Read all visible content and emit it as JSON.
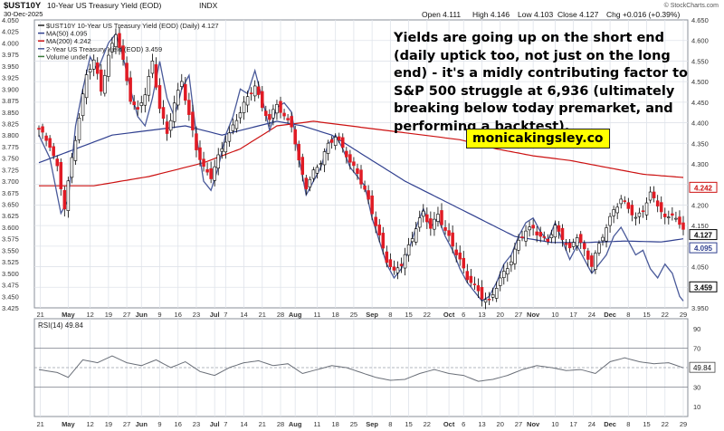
{
  "chart_data": {
    "type": "candlestick",
    "header": {
      "symbol": "$UST10Y",
      "name": "10-Year US Treasury Yield (EOD)",
      "exchange": "INDX",
      "date": "30-Dec-2025",
      "open_label": "Open 4.111",
      "high_label": "High 4.146",
      "low_label": "Low 4.103",
      "close_label": "Close 4.127",
      "chg_label": "Chg +0.016 (+0.39%)",
      "copyright": "© StockCharts.com"
    },
    "legend": [
      {
        "name": "$UST10Y 10-Year US Treasury Yield (EOD) (Daily) 4.127",
        "color": "#222222"
      },
      {
        "name": "MA(50) 4.095",
        "color": "#2f3f8f"
      },
      {
        "name": "MA(200) 4.242",
        "color": "#cc1111"
      },
      {
        "name": "2-Year US Treasury Yield (EOD) 3.459",
        "color": "#4a5a9a"
      },
      {
        "name": "Volume undef",
        "color": "#3a7a3a"
      }
    ],
    "ylim": [
      3.425,
      4.05
    ],
    "y_ticks_left": [
      3.425,
      3.45,
      3.475,
      3.5,
      3.525,
      3.55,
      3.575,
      3.6,
      3.625,
      3.65,
      3.675,
      3.7,
      3.725,
      3.75,
      3.775,
      3.8,
      3.825,
      3.85,
      3.875,
      3.9,
      3.925,
      3.95,
      3.975,
      4.0,
      4.025,
      4.05
    ],
    "y2lim": [
      3.95,
      4.65
    ],
    "y_ticks_right": [
      3.95,
      4.0,
      4.05,
      4.1,
      4.15,
      4.2,
      4.25,
      4.3,
      4.35,
      4.4,
      4.45,
      4.5,
      4.55,
      4.6,
      4.65
    ],
    "price_tags": [
      {
        "label": "4.242",
        "value": 4.242,
        "color": "#cc1111"
      },
      {
        "label": "4.127",
        "value": 4.127,
        "color": "#000000"
      },
      {
        "label": "4.095",
        "value": 4.095,
        "color": "#2f3f8f"
      },
      {
        "label": "3.459",
        "value": 4.0,
        "color": "#000000"
      }
    ],
    "x_tick_labels": [
      {
        "label": "21",
        "pos": 0.4
      },
      {
        "label": "May",
        "pos": 8
      },
      {
        "label": "12",
        "pos": 14
      },
      {
        "label": "19",
        "pos": 19
      },
      {
        "label": "27",
        "pos": 24
      },
      {
        "label": "Jun",
        "pos": 28
      },
      {
        "label": "9",
        "pos": 33
      },
      {
        "label": "16",
        "pos": 38
      },
      {
        "label": "23",
        "pos": 43
      },
      {
        "label": "Jul",
        "pos": 48
      },
      {
        "label": "7",
        "pos": 51
      },
      {
        "label": "14",
        "pos": 56
      },
      {
        "label": "21",
        "pos": 61
      },
      {
        "label": "28",
        "pos": 66
      },
      {
        "label": "Aug",
        "pos": 70
      },
      {
        "label": "11",
        "pos": 76
      },
      {
        "label": "18",
        "pos": 81
      },
      {
        "label": "25",
        "pos": 86
      },
      {
        "label": "Sep",
        "pos": 91
      },
      {
        "label": "8",
        "pos": 96
      },
      {
        "label": "15",
        "pos": 101
      },
      {
        "label": "22",
        "pos": 106
      },
      {
        "label": "Oct",
        "pos": 112
      },
      {
        "label": "6",
        "pos": 116
      },
      {
        "label": "13",
        "pos": 121
      },
      {
        "label": "20",
        "pos": 126
      },
      {
        "label": "27",
        "pos": 131
      },
      {
        "label": "Nov",
        "pos": 135
      },
      {
        "label": "10",
        "pos": 141
      },
      {
        "label": "17",
        "pos": 146
      },
      {
        "label": "24",
        "pos": 151
      },
      {
        "label": "Dec",
        "pos": 156
      },
      {
        "label": "8",
        "pos": 161
      },
      {
        "label": "15",
        "pos": 166
      },
      {
        "label": "22",
        "pos": 171
      },
      {
        "label": "29",
        "pos": 176
      }
    ],
    "x_tick_labels_lower": [
      {
        "label": "21",
        "pos": 0.4
      },
      {
        "label": "May",
        "pos": 8
      },
      {
        "label": "12",
        "pos": 14
      },
      {
        "label": "19",
        "pos": 19
      },
      {
        "label": "27",
        "pos": 24
      },
      {
        "label": "Jun",
        "pos": 28
      },
      {
        "label": "9",
        "pos": 33
      },
      {
        "label": "16",
        "pos": 38
      },
      {
        "label": "23",
        "pos": 43
      },
      {
        "label": "Jul",
        "pos": 48
      },
      {
        "label": "7",
        "pos": 51
      },
      {
        "label": "14",
        "pos": 56
      },
      {
        "label": "21",
        "pos": 61
      },
      {
        "label": "28",
        "pos": 66
      },
      {
        "label": "Aug",
        "pos": 70
      },
      {
        "label": "11",
        "pos": 76
      },
      {
        "label": "18",
        "pos": 81
      },
      {
        "label": "25",
        "pos": 86
      },
      {
        "label": "Sep",
        "pos": 91
      },
      {
        "label": "8",
        "pos": 96
      },
      {
        "label": "15",
        "pos": 101
      },
      {
        "label": "22",
        "pos": 106
      },
      {
        "label": "Oct",
        "pos": 112
      },
      {
        "label": "6",
        "pos": 116
      },
      {
        "label": "13",
        "pos": 121
      },
      {
        "label": "20",
        "pos": 126
      },
      {
        "label": "27",
        "pos": 131
      },
      {
        "label": "Nov",
        "pos": 135
      },
      {
        "label": "10",
        "pos": 141
      },
      {
        "label": "17",
        "pos": 146
      },
      {
        "label": "24",
        "pos": 151
      },
      {
        "label": "Dec",
        "pos": 156
      },
      {
        "label": "8",
        "pos": 161
      },
      {
        "label": "15",
        "pos": 166
      },
      {
        "label": "22",
        "pos": 171
      },
      {
        "label": "29",
        "pos": 176
      }
    ],
    "close_keypoints": [
      [
        0,
        3.81
      ],
      [
        3,
        3.78
      ],
      [
        5,
        3.73
      ],
      [
        7,
        3.64
      ],
      [
        9,
        3.75
      ],
      [
        11,
        3.84
      ],
      [
        13,
        3.93
      ],
      [
        15,
        3.96
      ],
      [
        17,
        3.9
      ],
      [
        19,
        3.97
      ],
      [
        21,
        4.02
      ],
      [
        23,
        3.96
      ],
      [
        25,
        3.88
      ],
      [
        27,
        3.85
      ],
      [
        29,
        3.89
      ],
      [
        31,
        3.96
      ],
      [
        33,
        3.86
      ],
      [
        35,
        3.8
      ],
      [
        37,
        3.87
      ],
      [
        39,
        3.92
      ],
      [
        41,
        3.84
      ],
      [
        43,
        3.77
      ],
      [
        45,
        3.73
      ],
      [
        47,
        3.71
      ],
      [
        49,
        3.75
      ],
      [
        51,
        3.79
      ],
      [
        53,
        3.82
      ],
      [
        55,
        3.85
      ],
      [
        57,
        3.88
      ],
      [
        59,
        3.91
      ],
      [
        61,
        3.86
      ],
      [
        63,
        3.83
      ],
      [
        65,
        3.87
      ],
      [
        67,
        3.84
      ],
      [
        69,
        3.82
      ],
      [
        71,
        3.74
      ],
      [
        73,
        3.69
      ],
      [
        75,
        3.72
      ],
      [
        77,
        3.74
      ],
      [
        79,
        3.78
      ],
      [
        81,
        3.8
      ],
      [
        83,
        3.77
      ],
      [
        85,
        3.74
      ],
      [
        87,
        3.72
      ],
      [
        89,
        3.68
      ],
      [
        91,
        3.63
      ],
      [
        93,
        3.58
      ],
      [
        95,
        3.53
      ],
      [
        97,
        3.5
      ],
      [
        99,
        3.52
      ],
      [
        101,
        3.56
      ],
      [
        103,
        3.6
      ],
      [
        105,
        3.63
      ],
      [
        107,
        3.6
      ],
      [
        109,
        3.63
      ],
      [
        111,
        3.59
      ],
      [
        113,
        3.56
      ],
      [
        115,
        3.53
      ],
      [
        117,
        3.49
      ],
      [
        119,
        3.47
      ],
      [
        121,
        3.45
      ],
      [
        123,
        3.44
      ],
      [
        125,
        3.47
      ],
      [
        127,
        3.5
      ],
      [
        129,
        3.53
      ],
      [
        131,
        3.57
      ],
      [
        133,
        3.59
      ],
      [
        135,
        3.6
      ],
      [
        137,
        3.58
      ],
      [
        139,
        3.57
      ],
      [
        141,
        3.6
      ],
      [
        143,
        3.58
      ],
      [
        145,
        3.55
      ],
      [
        147,
        3.58
      ],
      [
        149,
        3.55
      ],
      [
        151,
        3.52
      ],
      [
        153,
        3.56
      ],
      [
        155,
        3.6
      ],
      [
        157,
        3.64
      ],
      [
        159,
        3.66
      ],
      [
        161,
        3.64
      ],
      [
        163,
        3.62
      ],
      [
        165,
        3.64
      ],
      [
        167,
        3.67
      ],
      [
        169,
        3.65
      ],
      [
        171,
        3.62
      ],
      [
        173,
        3.63
      ],
      [
        175,
        3.6
      ],
      [
        176,
        3.598
      ]
    ],
    "ma50_keypoints": [
      [
        0,
        3.74
      ],
      [
        20,
        3.8
      ],
      [
        40,
        3.82
      ],
      [
        50,
        3.8
      ],
      [
        60,
        3.82
      ],
      [
        65,
        3.83
      ],
      [
        72,
        3.82
      ],
      [
        80,
        3.8
      ],
      [
        90,
        3.75
      ],
      [
        100,
        3.7
      ],
      [
        110,
        3.66
      ],
      [
        120,
        3.62
      ],
      [
        130,
        3.58
      ],
      [
        140,
        3.567
      ],
      [
        150,
        3.567
      ],
      [
        160,
        3.57
      ],
      [
        170,
        3.568
      ],
      [
        176,
        3.575
      ]
    ],
    "ma200_keypoints": [
      [
        0,
        3.69
      ],
      [
        15,
        3.69
      ],
      [
        30,
        3.71
      ],
      [
        45,
        3.74
      ],
      [
        55,
        3.77
      ],
      [
        65,
        3.82
      ],
      [
        75,
        3.83
      ],
      [
        85,
        3.82
      ],
      [
        95,
        3.81
      ],
      [
        105,
        3.8
      ],
      [
        115,
        3.79
      ],
      [
        125,
        3.77
      ],
      [
        135,
        3.755
      ],
      [
        145,
        3.745
      ],
      [
        155,
        3.73
      ],
      [
        165,
        3.715
      ],
      [
        176,
        3.708
      ]
    ],
    "ust2y_keypoints": [
      [
        0,
        3.8
      ],
      [
        3,
        3.75
      ],
      [
        6,
        3.63
      ],
      [
        8,
        3.66
      ],
      [
        10,
        3.82
      ],
      [
        12,
        3.9
      ],
      [
        14,
        3.97
      ],
      [
        16,
        3.94
      ],
      [
        19,
        4.0
      ],
      [
        21,
        4.02
      ],
      [
        23,
        3.97
      ],
      [
        25,
        3.9
      ],
      [
        27,
        3.84
      ],
      [
        29,
        3.82
      ],
      [
        31,
        3.88
      ],
      [
        33,
        3.96
      ],
      [
        35,
        3.88
      ],
      [
        37,
        3.84
      ],
      [
        39,
        3.9
      ],
      [
        41,
        3.93
      ],
      [
        43,
        3.8
      ],
      [
        45,
        3.7
      ],
      [
        47,
        3.68
      ],
      [
        49,
        3.73
      ],
      [
        51,
        3.8
      ],
      [
        53,
        3.84
      ],
      [
        55,
        3.9
      ],
      [
        57,
        3.89
      ],
      [
        59,
        3.94
      ],
      [
        61,
        3.88
      ],
      [
        63,
        3.81
      ],
      [
        65,
        3.86
      ],
      [
        67,
        3.87
      ],
      [
        69,
        3.85
      ],
      [
        71,
        3.75
      ],
      [
        73,
        3.67
      ],
      [
        75,
        3.7
      ],
      [
        77,
        3.73
      ],
      [
        79,
        3.78
      ],
      [
        81,
        3.8
      ],
      [
        83,
        3.77
      ],
      [
        85,
        3.73
      ],
      [
        87,
        3.71
      ],
      [
        89,
        3.69
      ],
      [
        91,
        3.62
      ],
      [
        93,
        3.57
      ],
      [
        95,
        3.52
      ],
      [
        97,
        3.49
      ],
      [
        99,
        3.51
      ],
      [
        101,
        3.55
      ],
      [
        103,
        3.6
      ],
      [
        105,
        3.64
      ],
      [
        107,
        3.6
      ],
      [
        109,
        3.62
      ],
      [
        111,
        3.58
      ],
      [
        113,
        3.55
      ],
      [
        115,
        3.51
      ],
      [
        117,
        3.48
      ],
      [
        119,
        3.46
      ],
      [
        121,
        3.44
      ],
      [
        123,
        3.45
      ],
      [
        125,
        3.48
      ],
      [
        127,
        3.52
      ],
      [
        129,
        3.54
      ],
      [
        131,
        3.58
      ],
      [
        133,
        3.61
      ],
      [
        135,
        3.62
      ],
      [
        137,
        3.59
      ],
      [
        139,
        3.57
      ],
      [
        141,
        3.61
      ],
      [
        143,
        3.57
      ],
      [
        145,
        3.53
      ],
      [
        147,
        3.56
      ],
      [
        149,
        3.53
      ],
      [
        151,
        3.5
      ],
      [
        153,
        3.52
      ],
      [
        155,
        3.54
      ],
      [
        157,
        3.58
      ],
      [
        159,
        3.6
      ],
      [
        161,
        3.57
      ],
      [
        163,
        3.54
      ],
      [
        165,
        3.55
      ],
      [
        167,
        3.51
      ],
      [
        169,
        3.49
      ],
      [
        171,
        3.52
      ],
      [
        173,
        3.5
      ],
      [
        175,
        3.45
      ],
      [
        176,
        3.44
      ]
    ],
    "rsi": {
      "label": "RSI(14) 49.84",
      "ylim": [
        0,
        100
      ],
      "ticks": [
        10,
        30,
        50,
        70,
        90
      ],
      "levels": [
        30,
        70
      ],
      "last_label": "49.84",
      "keypoints": [
        [
          0,
          48
        ],
        [
          5,
          45
        ],
        [
          8,
          40
        ],
        [
          12,
          58
        ],
        [
          16,
          55
        ],
        [
          20,
          62
        ],
        [
          24,
          55
        ],
        [
          28,
          52
        ],
        [
          32,
          58
        ],
        [
          36,
          50
        ],
        [
          40,
          56
        ],
        [
          44,
          46
        ],
        [
          48,
          42
        ],
        [
          52,
          50
        ],
        [
          56,
          55
        ],
        [
          60,
          57
        ],
        [
          64,
          52
        ],
        [
          68,
          54
        ],
        [
          72,
          44
        ],
        [
          76,
          48
        ],
        [
          80,
          52
        ],
        [
          84,
          50
        ],
        [
          88,
          45
        ],
        [
          92,
          40
        ],
        [
          96,
          37
        ],
        [
          100,
          38
        ],
        [
          104,
          44
        ],
        [
          108,
          48
        ],
        [
          112,
          44
        ],
        [
          116,
          42
        ],
        [
          120,
          36
        ],
        [
          124,
          38
        ],
        [
          128,
          42
        ],
        [
          132,
          48
        ],
        [
          136,
          52
        ],
        [
          140,
          50
        ],
        [
          144,
          47
        ],
        [
          148,
          48
        ],
        [
          152,
          44
        ],
        [
          156,
          56
        ],
        [
          160,
          60
        ],
        [
          164,
          56
        ],
        [
          168,
          54
        ],
        [
          172,
          55
        ],
        [
          176,
          49.84
        ]
      ]
    }
  },
  "annotation": {
    "text": "Yields are going up on the short end (daily uptick too, not just on the long end) - it's a midly contributing factor to S&P 500 struggle at 6,936 (ultimately breaking below today premarket, and performing a backtest).",
    "brand": "monicakingsley.co"
  },
  "colors": {
    "up_candle": "#ffffff",
    "down_candle": "#e01b24",
    "candle_outline": "#000000",
    "grid": "#dfe3ea",
    "axis_text": "#333333"
  }
}
